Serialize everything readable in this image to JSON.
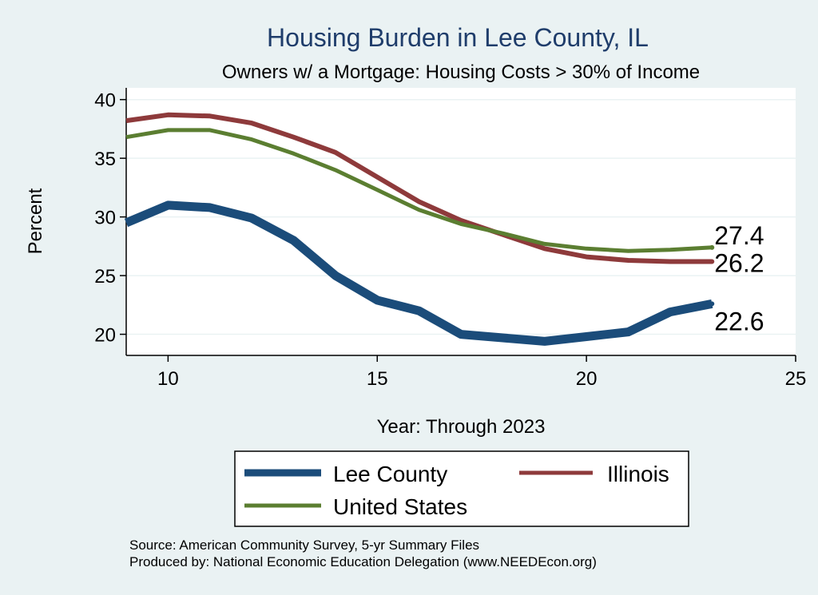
{
  "chart_data": {
    "type": "line",
    "title": "Housing Burden in Lee County, IL",
    "subtitle": "Owners w/ a Mortgage: Housing Costs > 30% of Income",
    "xlabel": "Year: Through 2023",
    "ylabel": "Percent",
    "xlim": [
      9,
      25
    ],
    "ylim": [
      18.2,
      41
    ],
    "xticks": [
      10,
      15,
      20,
      25
    ],
    "yticks": [
      20,
      25,
      30,
      35,
      40
    ],
    "grid": true,
    "x": [
      9,
      10,
      11,
      12,
      13,
      14,
      15,
      16,
      17,
      18,
      19,
      20,
      21,
      22,
      23
    ],
    "series": [
      {
        "name": "Lee County",
        "color": "#1b4c7a",
        "values": [
          29.5,
          31.0,
          30.8,
          29.9,
          28.0,
          25.0,
          22.9,
          22.0,
          20.0,
          19.7,
          19.4,
          19.8,
          20.2,
          21.9,
          22.6
        ],
        "end_label": "22.6"
      },
      {
        "name": "Illinois",
        "color": "#8e3a3b",
        "values": [
          38.2,
          38.7,
          38.6,
          38.0,
          36.8,
          35.5,
          33.4,
          31.3,
          29.7,
          28.5,
          27.3,
          26.6,
          26.3,
          26.2,
          26.2
        ],
        "end_label": "26.2"
      },
      {
        "name": "United States",
        "color": "#5b7e31",
        "values": [
          36.8,
          37.4,
          37.4,
          36.6,
          35.4,
          34.0,
          32.3,
          30.6,
          29.4,
          28.6,
          27.7,
          27.3,
          27.1,
          27.2,
          27.4
        ],
        "end_label": "27.4"
      }
    ],
    "legend": {
      "placement": "bottom",
      "entries": [
        "Lee County",
        "Illinois",
        "United States"
      ]
    }
  },
  "footnotes": {
    "source": "Source: American Community Survey, 5-yr Summary Files",
    "produced_by": "Produced by: National Economic Education Delegation (www.NEEDEcon.org)"
  }
}
